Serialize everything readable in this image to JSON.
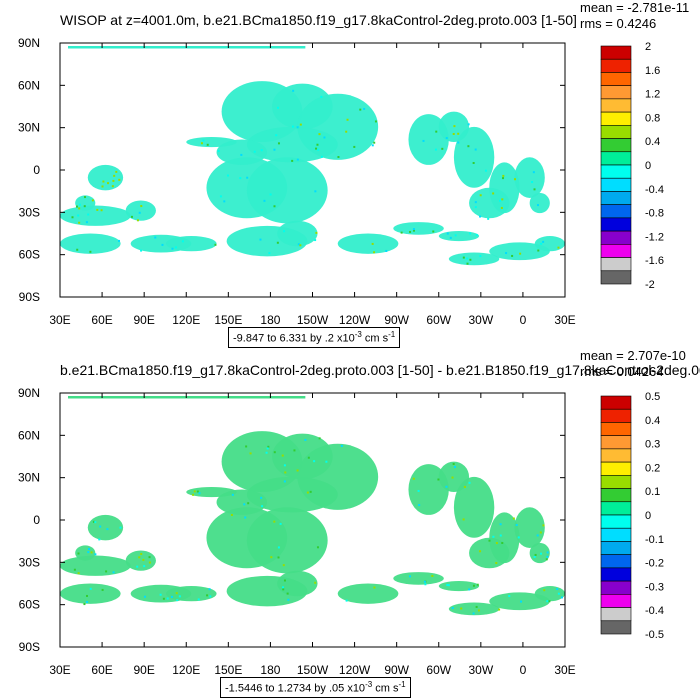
{
  "panels": [
    {
      "title": "WISOP at z=4001.0m, b.e21.BCma1850.f19_g17.8kaControl-2deg.proto.003 [1-50]",
      "mean_text": "mean = -2.781e-11",
      "rms_text": "rms = 0.4246",
      "range_prefix": "-9.847 to 6.331 by .2 x10",
      "range_exp": "-3",
      "range_suffix": " cm s",
      "range_unit_exp": "-1",
      "colorbar_labels": [
        "2",
        "1.6",
        "1.2",
        "0.8",
        "0.4",
        "0",
        "-0.4",
        "-0.8",
        "-1.2",
        "-1.6",
        "-2"
      ]
    },
    {
      "title": "b.e21.BCma1850.f19_g17.8kaControl-2deg.proto.003 [1-50] - b.e21.B1850.f19_g17.8kaControl-2deg.00",
      "mean_text": "mean = 2.707e-10",
      "rms_text": "rms = 0.04264",
      "range_prefix": "-1.5446 to 1.2734 by .05 x10",
      "range_exp": "-3",
      "range_suffix": " cm s",
      "range_unit_exp": "-1",
      "colorbar_labels": [
        "0.5",
        "0.4",
        "0.3",
        "0.2",
        "0.1",
        "0",
        "-0.1",
        "-0.2",
        "-0.3",
        "-0.4",
        "-0.5"
      ]
    }
  ],
  "chart_data": [
    {
      "type": "heatmap",
      "title": "WISOP at z=4001.0m, b.e21.BCma1850.f19_g17.8kaControl-2deg.proto.003 [1-50]",
      "x_ticks": [
        "30E",
        "60E",
        "90E",
        "120E",
        "150E",
        "180",
        "150W",
        "120W",
        "90W",
        "60W",
        "30W",
        "0",
        "30E"
      ],
      "y_ticks": [
        "90N",
        "60N",
        "30N",
        "0",
        "30S",
        "60S",
        "90S"
      ],
      "xlim": [
        30,
        390
      ],
      "ylim": [
        -90,
        90
      ],
      "color_levels": [
        2,
        1.6,
        1.2,
        0.8,
        0.4,
        0,
        -0.4,
        -0.8,
        -1.2,
        -1.6,
        -2
      ],
      "colorbar_colors": [
        "#cc0000",
        "#ee2200",
        "#ff6600",
        "#ff9933",
        "#ffbb33",
        "#ffee00",
        "#99dd00",
        "#33cc33",
        "#00ee99",
        "#00ffee",
        "#00ddff",
        "#00aaee",
        "#0066ee",
        "#0000dd",
        "#8800cc",
        "#ee00ee",
        "#cccccc",
        "#666666"
      ],
      "dominant_color": "#33eecc",
      "stats": {
        "mean": "-2.781e-11",
        "rms": "0.4246"
      },
      "contour_info": "-9.847 to 6.331 by .2 x10-3 cm s-1"
    },
    {
      "type": "heatmap",
      "title": "b.e21.BCma1850.f19_g17.8kaControl-2deg.proto.003 [1-50] - b.e21.B1850.f19_g17.8kaControl-2deg.00",
      "x_ticks": [
        "30E",
        "60E",
        "90E",
        "120E",
        "150E",
        "180",
        "150W",
        "120W",
        "90W",
        "60W",
        "30W",
        "0",
        "30E"
      ],
      "y_ticks": [
        "90N",
        "60N",
        "30N",
        "0",
        "30S",
        "60S",
        "90S"
      ],
      "xlim": [
        30,
        390
      ],
      "ylim": [
        -90,
        90
      ],
      "color_levels": [
        0.5,
        0.4,
        0.3,
        0.2,
        0.1,
        0,
        -0.1,
        -0.2,
        -0.3,
        -0.4,
        -0.5
      ],
      "colorbar_colors": [
        "#cc0000",
        "#ee2200",
        "#ff6600",
        "#ff9933",
        "#ffbb33",
        "#ffee00",
        "#99dd00",
        "#33cc33",
        "#00ee99",
        "#00ffee",
        "#00ddff",
        "#00aaee",
        "#0066ee",
        "#0000dd",
        "#8800cc",
        "#ee00ee",
        "#cccccc",
        "#666666"
      ],
      "dominant_color": "#44dd88",
      "stats": {
        "mean": "2.707e-10",
        "rms": "0.04264"
      },
      "contour_info": "-1.5446 to 1.2734 by .05 x10-3 cm s-1"
    }
  ]
}
